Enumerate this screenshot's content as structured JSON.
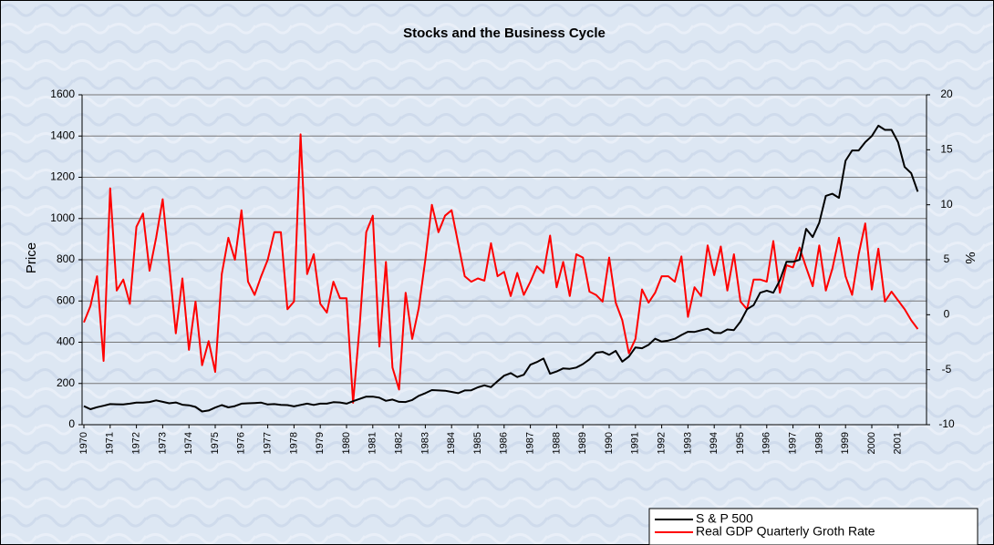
{
  "chart_data": {
    "type": "line",
    "title": "Stocks and the Business Cycle",
    "y_label": "Price",
    "y2_label": "%",
    "categories": [
      "1970",
      null,
      null,
      null,
      "1971",
      null,
      null,
      null,
      "1972",
      null,
      null,
      null,
      "1973",
      null,
      null,
      null,
      "1974",
      null,
      null,
      null,
      "1975",
      null,
      null,
      null,
      "1976",
      null,
      null,
      null,
      "1977",
      null,
      null,
      null,
      "1978",
      null,
      null,
      null,
      "1979",
      null,
      null,
      null,
      "1980",
      null,
      null,
      null,
      "1981",
      null,
      null,
      null,
      "1982",
      null,
      null,
      null,
      "1983",
      null,
      null,
      null,
      "1984",
      null,
      null,
      null,
      "1985",
      null,
      null,
      null,
      "1986",
      null,
      null,
      null,
      "1987",
      null,
      null,
      null,
      "1988",
      null,
      null,
      null,
      "1989",
      null,
      null,
      null,
      "1990",
      null,
      null,
      null,
      "1991",
      null,
      null,
      null,
      "1992",
      null,
      null,
      null,
      "1993",
      null,
      null,
      null,
      "1994",
      null,
      null,
      null,
      "1995",
      null,
      null,
      null,
      "1996",
      null,
      null,
      null,
      "1997",
      null,
      null,
      null,
      "1998",
      null,
      null,
      null,
      "1999",
      null,
      null,
      null,
      "2000",
      null,
      null,
      null,
      "2001",
      null,
      null,
      null
    ],
    "series": [
      {
        "name": "S & P 500",
        "color": "#000000",
        "axis": "y",
        "values": [
          90,
          75,
          85,
          92,
          100,
          99,
          98,
          102,
          107,
          107,
          110,
          118,
          111,
          104,
          108,
          97,
          94,
          86,
          64,
          69,
          83,
          95,
          84,
          90,
          102,
          104,
          105,
          107,
          98,
          100,
          96,
          95,
          89,
          96,
          102,
          96,
          102,
          102,
          109,
          108,
          102,
          114,
          125,
          136,
          136,
          131,
          116,
          122,
          111,
          110,
          120,
          140,
          153,
          168,
          166,
          165,
          159,
          153,
          166,
          167,
          181,
          191,
          182,
          211,
          238,
          250,
          231,
          242,
          291,
          304,
          321,
          247,
          258,
          273,
          271,
          277,
          294,
          317,
          349,
          353,
          339,
          358,
          306,
          330,
          375,
          371,
          387,
          417,
          403,
          408,
          417,
          435,
          451,
          450,
          458,
          466,
          445,
          444,
          462,
          459,
          500,
          560,
          580,
          640,
          650,
          640,
          700,
          790,
          790,
          800,
          950,
          910,
          980,
          1110,
          1120,
          1100,
          1280,
          1330,
          1330,
          1370,
          1400,
          1450,
          1430,
          1430,
          1370,
          1250,
          1220,
          1130
        ]
      },
      {
        "name": "Real GDP Quarterly Groth Rate",
        "color": "#ff0000",
        "axis": "y2",
        "values": [
          -0.7,
          0.8,
          3.5,
          -4.2,
          11.5,
          2.2,
          3.2,
          1.0,
          8,
          9.2,
          4,
          7,
          10.5,
          4.5,
          -1.7,
          3.3,
          -3.2,
          1.2,
          -4.6,
          -2.4,
          -5.2,
          3.7,
          7,
          5,
          9.5,
          3,
          1.8,
          3.5,
          5,
          7.5,
          7.5,
          0.5,
          1.2,
          16.4,
          3.7,
          5.5,
          1,
          0.2,
          3,
          1.5,
          1.5,
          -8,
          -1,
          7.5,
          9,
          -2.9,
          4.8,
          -4.8,
          -6.8,
          2,
          -2.2,
          0.6,
          5,
          10,
          7.5,
          9,
          9.5,
          6.5,
          3.5,
          3,
          3.3,
          3.1,
          6.5,
          3.5,
          3.9,
          1.7,
          3.8,
          1.8,
          3,
          4.4,
          3.8,
          7.2,
          2.5,
          4.8,
          1.7,
          5.5,
          5.2,
          2.1,
          1.8,
          1.2,
          5.2,
          1.1,
          -0.5,
          -3.5,
          -2.2,
          2.3,
          1.1,
          2,
          3.5,
          3.5,
          3,
          5.3,
          -0.2,
          2.5,
          1.7,
          6.3,
          3.6,
          6.2,
          2.2,
          5.5,
          1.2,
          0.5,
          3.2,
          3.2,
          3,
          6.7,
          2,
          4.5,
          4.3,
          6.1,
          4.3,
          2.6,
          6.3,
          2.2,
          4.2,
          7,
          3.5,
          1.8,
          5.5,
          8.3,
          2.3,
          6,
          1.2,
          2.1,
          1.3,
          0.5,
          -0.5,
          -1.3
        ]
      }
    ],
    "ylim": [
      0,
      1600
    ],
    "yticks": [
      0,
      200,
      400,
      600,
      800,
      1000,
      1200,
      1400,
      1600
    ],
    "y2lim": [
      -10,
      20
    ],
    "y2ticks": [
      -10,
      -5,
      0,
      5,
      10,
      15,
      20
    ],
    "grid": true,
    "legend": "bottom-right"
  }
}
